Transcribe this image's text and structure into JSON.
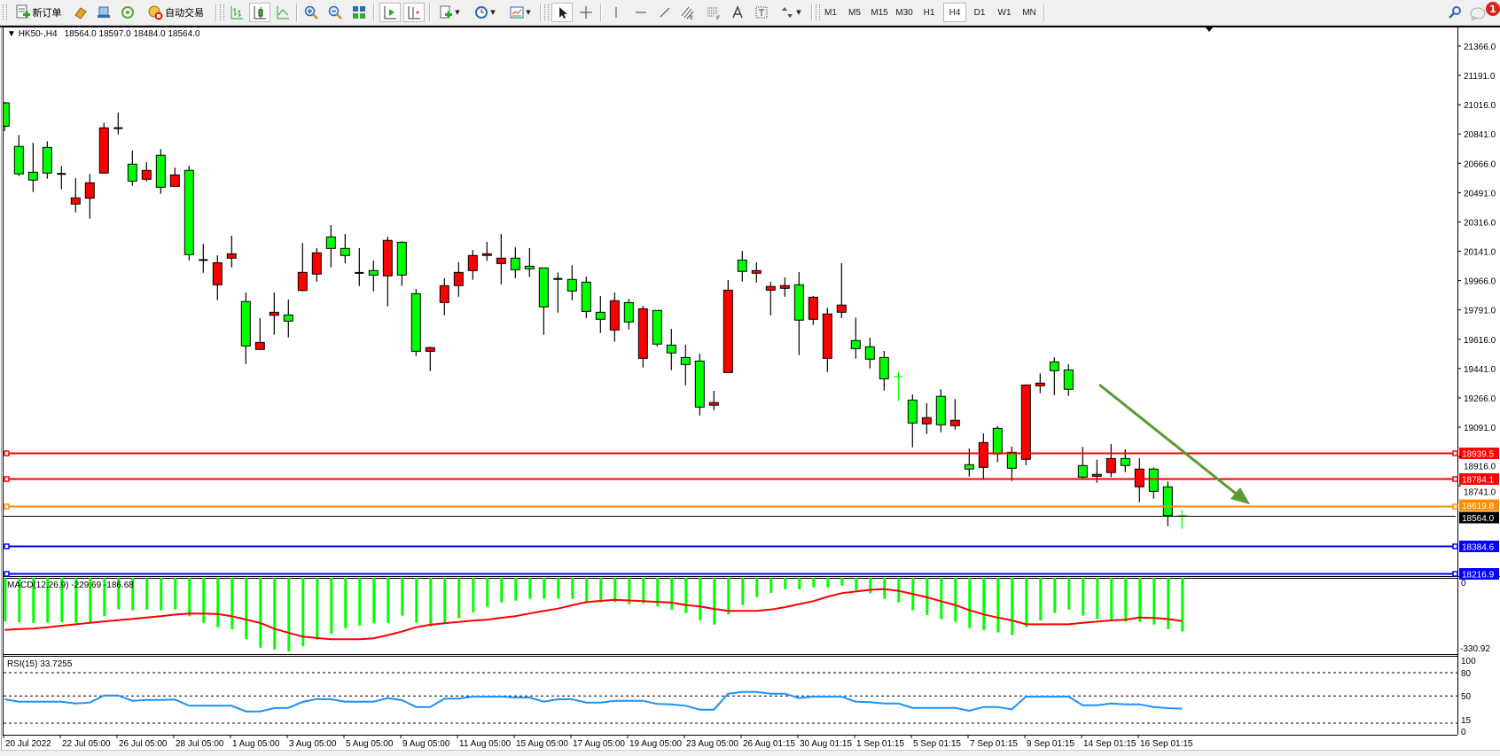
{
  "toolbar": {
    "new_order": "新订单",
    "autotrading": "自动交易",
    "timeframes": [
      "M1",
      "M5",
      "M15",
      "M30",
      "H1",
      "H4",
      "D1",
      "W1",
      "MN"
    ],
    "active_timeframe": "H4",
    "notification_count": "1"
  },
  "chart_header": {
    "symbol": "HK50-,H4",
    "ohlc": "18564.0 18597.0 18484.0 18564.0"
  },
  "chart_data": [
    {
      "type": "candlestick",
      "symbol": "HK50-",
      "timeframe": "H4",
      "columns": [
        "open",
        "high",
        "low",
        "close"
      ],
      "ohlc": [
        [
          21027,
          21033,
          20858,
          20888
        ],
        [
          20767,
          20835,
          20590,
          20603
        ],
        [
          20613,
          20789,
          20495,
          20566
        ],
        [
          20761,
          20798,
          20574,
          20608
        ],
        [
          20603,
          20650,
          20511,
          20603
        ],
        [
          20423,
          20578,
          20373,
          20460
        ],
        [
          20458,
          20603,
          20336,
          20550
        ],
        [
          20608,
          20909,
          20608,
          20878
        ],
        [
          20876,
          20969,
          20839,
          20876
        ],
        [
          20661,
          20742,
          20532,
          20560
        ],
        [
          20571,
          20673,
          20558,
          20624
        ],
        [
          20714,
          20751,
          20484,
          20523
        ],
        [
          20528,
          20641,
          20528,
          20597
        ],
        [
          20624,
          20652,
          20087,
          20121
        ],
        [
          20089,
          20186,
          20013,
          20089
        ],
        [
          19941,
          20117,
          19849,
          20073
        ],
        [
          20100,
          20234,
          20045,
          20126
        ],
        [
          19841,
          19895,
          19468,
          19576
        ],
        [
          19555,
          19742,
          19555,
          19597
        ],
        [
          19759,
          19895,
          19643,
          19777
        ],
        [
          19761,
          19853,
          19627,
          19724
        ],
        [
          19907,
          20191,
          19902,
          20015
        ],
        [
          20005,
          20160,
          19960,
          20132
        ],
        [
          20227,
          20297,
          20045,
          20158
        ],
        [
          20158,
          20244,
          20071,
          20116
        ],
        [
          20012,
          20160,
          19934,
          20012
        ],
        [
          20026,
          20086,
          19902,
          19999
        ],
        [
          19994,
          20227,
          19812,
          20206
        ],
        [
          20195,
          20200,
          19934,
          19999
        ],
        [
          19888,
          19916,
          19516,
          19544
        ],
        [
          19544,
          19572,
          19426,
          19566
        ],
        [
          19835,
          19980,
          19759,
          19936
        ],
        [
          19936,
          20075,
          19870,
          20015
        ],
        [
          20026,
          20149,
          19971,
          20116
        ],
        [
          20116,
          20197,
          20084,
          20126
        ],
        [
          20068,
          20244,
          19944,
          20100
        ],
        [
          20100,
          20165,
          19981,
          20031
        ],
        [
          20052,
          20160,
          19987,
          20036
        ],
        [
          20042,
          20042,
          19643,
          19809
        ],
        [
          19976,
          20015,
          19775,
          19976
        ],
        [
          19973,
          20058,
          19849,
          19904
        ],
        [
          19957,
          19990,
          19743,
          19782
        ],
        [
          19777,
          19874,
          19653,
          19735
        ],
        [
          19671,
          19895,
          19601,
          19846
        ],
        [
          19835,
          19857,
          19675,
          19719
        ],
        [
          19502,
          19814,
          19447,
          19798
        ],
        [
          19788,
          19788,
          19574,
          19587
        ],
        [
          19581,
          19678,
          19431,
          19534
        ],
        [
          19507,
          19583,
          19341,
          19465
        ],
        [
          19486,
          19530,
          19161,
          19211
        ],
        [
          19222,
          19308,
          19193,
          19238
        ],
        [
          19417,
          19969,
          19417,
          19909
        ],
        [
          20089,
          20144,
          19960,
          20021
        ],
        [
          20010,
          20075,
          19955,
          20026
        ],
        [
          19909,
          19959,
          19759,
          19931
        ],
        [
          19920,
          19985,
          19870,
          19936
        ],
        [
          19941,
          20017,
          19521,
          19730
        ],
        [
          19735,
          19874,
          19701,
          19867
        ],
        [
          19502,
          19804,
          19421,
          19767
        ],
        [
          19777,
          20070,
          19743,
          19820
        ],
        [
          19608,
          19745,
          19500,
          19560
        ],
        [
          19571,
          19625,
          19442,
          19497
        ],
        [
          19507,
          19546,
          19310,
          19380
        ],
        [
          19393,
          19423,
          19246,
          19393
        ],
        [
          19253,
          19287,
          18971,
          19116
        ],
        [
          19111,
          19234,
          19050,
          19148
        ],
        [
          19275,
          19317,
          19061,
          19105
        ],
        [
          19100,
          19259,
          19077,
          19132
        ],
        [
          18867,
          18964,
          18796,
          18841
        ],
        [
          18851,
          19054,
          18775,
          18999
        ],
        [
          19084,
          19098,
          18883,
          18931
        ],
        [
          18941,
          18976,
          18770,
          18846
        ],
        [
          18899,
          19343,
          18865,
          19343
        ],
        [
          19338,
          19412,
          19294,
          19354
        ],
        [
          19481,
          19507,
          19283,
          19428
        ],
        [
          19433,
          19467,
          19278,
          19317
        ],
        [
          18862,
          18973,
          18780,
          18793
        ],
        [
          18798,
          18897,
          18759,
          18809
        ],
        [
          18820,
          18990,
          18793,
          18904
        ],
        [
          18904,
          18959,
          18823,
          18862
        ],
        [
          18735,
          18906,
          18643,
          18841
        ],
        [
          18841,
          18851,
          18664,
          18708
        ],
        [
          18735,
          18767,
          18500,
          18564
        ],
        [
          18564,
          18597,
          18484,
          18564
        ]
      ],
      "doji_green_indices": [
        63,
        83
      ],
      "colors": {
        "bull": "#FF0000",
        "bear": "#00FF00",
        "outline": "#000000",
        "trend_arrow": "#5A9A32"
      },
      "ylim": [
        18216.9,
        21450
      ],
      "price_axis_labels": [
        "21366.0",
        "21191.0",
        "21016.0",
        "20841.0",
        "20666.0",
        "20491.0",
        "20316.0",
        "20141.0",
        "19966.0",
        "19791.0",
        "19616.0",
        "19441.0",
        "19266.0",
        "19091.0",
        "18916.0",
        "18741.0"
      ],
      "date_labels": [
        "20 Jul 2022",
        "22 Jul 05:00",
        "26 Jul 05:00",
        "28 Jul 05:00",
        "1 Aug 05:00",
        "3 Aug 05:00",
        "5 Aug 05:00",
        "9 Aug 05:00",
        "11 Aug 05:00",
        "15 Aug 05:00",
        "17 Aug 05:00",
        "19 Aug 05:00",
        "23 Aug 05:00",
        "26 Aug 01:15",
        "30 Aug 01:15",
        "1 Sep 01:15",
        "5 Sep 01:15",
        "7 Sep 01:15",
        "9 Sep 01:15",
        "14 Sep 01:15",
        "16 Sep 01:15"
      ],
      "levels": [
        {
          "price": 18939.5,
          "label": "18939.5",
          "color": "#FF0000"
        },
        {
          "price": 18784.1,
          "label": "18784.1",
          "color": "#FF0000"
        },
        {
          "price": 18619.8,
          "label": "18619.8",
          "color": "#FF8C00"
        },
        {
          "price": 18564.0,
          "label": "18564.0",
          "color": "#000000"
        },
        {
          "price": 18384.6,
          "label": "18384.6",
          "color": "#0000FF"
        },
        {
          "price": 18216.9,
          "label": "18216.9",
          "color": "#0000FF"
        }
      ]
    },
    {
      "type": "bar",
      "title": "MACD(12,26,9) -229.69 -186.68",
      "axis_labels": [
        "0",
        "-330.92"
      ],
      "ylim": [
        -330.92,
        0
      ],
      "colors": {
        "histogram": "#00FF00",
        "signal": "#FF0000"
      },
      "histogram": [
        -188,
        -191,
        -194,
        -194,
        -191,
        -194,
        -191,
        -166,
        -139,
        -142,
        -139,
        -142,
        -139,
        -167,
        -194,
        -212,
        -220,
        -262,
        -297,
        -304,
        -313,
        -291,
        -264,
        -239,
        -217,
        -205,
        -196,
        -194,
        -164,
        -194,
        -209,
        -196,
        -175,
        -151,
        -128,
        -109,
        -102,
        -94,
        -94,
        -94,
        -94,
        -110,
        -109,
        -108,
        -117,
        -113,
        -126,
        -139,
        -153,
        -184,
        -201,
        -159,
        -120,
        -87,
        -70,
        -55,
        -55,
        -47,
        -47,
        -39,
        -58,
        -72,
        -94,
        -109,
        -142,
        -161,
        -179,
        -190,
        -216,
        -224,
        -234,
        -245,
        -212,
        -184,
        -153,
        -139,
        -164,
        -179,
        -181,
        -190,
        -190,
        -201,
        -220,
        -229.69
      ],
      "signal": [
        -223,
        -220,
        -218,
        -213,
        -206,
        -200,
        -194,
        -188,
        -183,
        -178,
        -172,
        -166,
        -160,
        -155,
        -156,
        -157,
        -166,
        -180,
        -194,
        -218,
        -235,
        -251,
        -257,
        -262,
        -262,
        -262,
        -258,
        -245,
        -230,
        -212,
        -202,
        -196,
        -190,
        -185,
        -181,
        -173,
        -166,
        -155,
        -145,
        -135,
        -121,
        -108,
        -103,
        -98,
        -101,
        -104,
        -107,
        -110,
        -120,
        -126,
        -136,
        -144,
        -144,
        -144,
        -139,
        -129,
        -116,
        -104,
        -86,
        -71,
        -64,
        -57,
        -54,
        -61,
        -74,
        -88,
        -104,
        -120,
        -141,
        -159,
        -172,
        -184,
        -200,
        -200,
        -200,
        -200,
        -194,
        -189,
        -184,
        -181,
        -172,
        -174,
        -178,
        -186.68
      ]
    },
    {
      "type": "line",
      "title": "RSI(15) 33.7255",
      "ylim": [
        0,
        100
      ],
      "levels": [
        80,
        50,
        15
      ],
      "axis_labels": [
        "100",
        "80",
        "50",
        "15",
        "0"
      ],
      "colors": {
        "line": "#1E90FF"
      },
      "values": [
        45.8,
        42.7,
        42.7,
        42.7,
        42.7,
        40.4,
        41.6,
        50.7,
        50.7,
        43.8,
        45,
        45,
        45.4,
        37.5,
        37.5,
        37.5,
        37.5,
        30.2,
        30.2,
        34.4,
        34.7,
        42.4,
        46.1,
        45.8,
        42.7,
        42.7,
        42.7,
        47.3,
        44.6,
        35.9,
        35.9,
        46.6,
        46.6,
        49.2,
        49.2,
        49.2,
        48.1,
        48.1,
        42.7,
        45.8,
        45.8,
        41.6,
        41.6,
        43.8,
        43.8,
        43.8,
        39.7,
        39.3,
        37.5,
        32.4,
        32.4,
        53,
        55.2,
        55.2,
        53,
        53,
        47.3,
        49.2,
        49.2,
        49.2,
        42.7,
        42,
        40.4,
        40.4,
        34.7,
        34.7,
        34.7,
        34.7,
        31,
        35.9,
        35.9,
        32.9,
        49.2,
        49.2,
        49.2,
        49.2,
        38.1,
        38.1,
        40.4,
        39.3,
        39.3,
        35.9,
        34.4,
        33.7255
      ]
    }
  ]
}
